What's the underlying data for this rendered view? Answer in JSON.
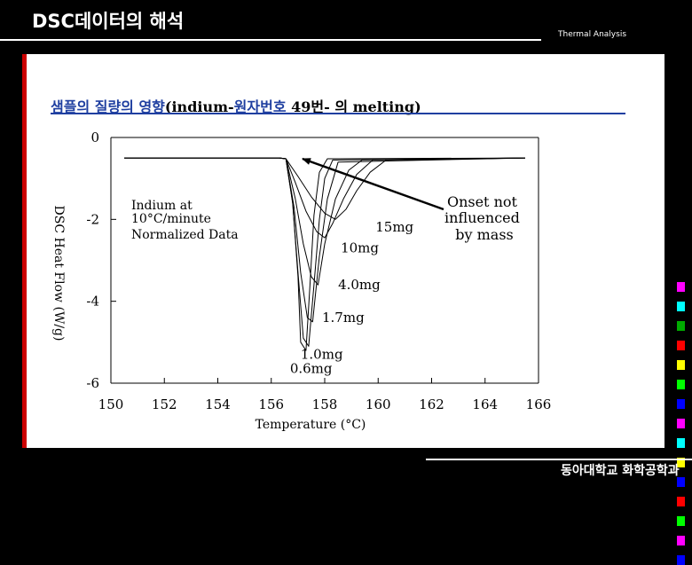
{
  "slide": {
    "title": "DSC데이터의 해석",
    "tag": "Thermal Analysis",
    "footer": "동아대학교 화학공학과"
  },
  "chart_heading": {
    "korean_1": "샘플의 질량의 영향",
    "latin": "(indium-",
    "korean_2": "원자번호",
    "rest": " 49번- 의 melting)"
  },
  "colors": {
    "background": "#000000",
    "panel": "#ffffff",
    "panel_bar": "#cc0000",
    "heading_ko": "#1f3fa0",
    "swatches": [
      "#ff00ff",
      "#00ffff",
      "#00aa00",
      "#ff0000",
      "#ffff00",
      "#00ff00",
      "#0000ff",
      "#ff00ff",
      "#00ffff",
      "#ffff00",
      "#0000ff",
      "#ff0000",
      "#00ff00",
      "#ff00ff",
      "#0000ff"
    ]
  },
  "chart_data": {
    "type": "line",
    "xlabel": "Temperature (°C)",
    "ylabel": "DSC Heat Flow (W/g)",
    "xlim": [
      150,
      166
    ],
    "ylim": [
      -6,
      0
    ],
    "xticks": [
      "150",
      "152",
      "154",
      "156",
      "158",
      "160",
      "162",
      "164",
      "166"
    ],
    "yticks": [
      "0",
      "-2",
      "-4",
      "-6"
    ],
    "annotation_conditions": [
      "Indium at",
      "10°C/minute",
      "Normalized Data"
    ],
    "annotation_onset": [
      "Onset not",
      "influenced",
      "by mass"
    ],
    "series": [
      {
        "name": "0.6mg",
        "x": [
          150.5,
          156.3,
          156.55,
          156.8,
          157.0,
          157.1,
          157.3,
          157.45,
          157.6,
          157.8,
          158.1,
          165.5
        ],
        "y": [
          -0.5,
          -0.5,
          -0.52,
          -1.6,
          -3.4,
          -5.0,
          -5.2,
          -3.6,
          -1.9,
          -0.85,
          -0.52,
          -0.5
        ]
      },
      {
        "name": "1.0mg",
        "x": [
          150.5,
          156.3,
          156.55,
          156.8,
          157.0,
          157.2,
          157.4,
          157.6,
          157.8,
          158.0,
          158.3,
          165.5
        ],
        "y": [
          -0.5,
          -0.5,
          -0.52,
          -1.6,
          -3.3,
          -4.9,
          -5.1,
          -3.6,
          -2.0,
          -1.0,
          -0.55,
          -0.5
        ]
      },
      {
        "name": "1.7mg",
        "x": [
          150.5,
          156.3,
          156.55,
          156.85,
          157.1,
          157.35,
          157.55,
          157.8,
          158.1,
          158.5,
          165.5
        ],
        "y": [
          -0.5,
          -0.5,
          -0.52,
          -1.7,
          -3.3,
          -4.4,
          -4.5,
          -2.9,
          -1.5,
          -0.6,
          -0.5
        ]
      },
      {
        "name": "4.0mg",
        "x": [
          150.5,
          156.3,
          156.55,
          156.9,
          157.2,
          157.5,
          157.75,
          158.0,
          158.4,
          158.9,
          159.4,
          165.5
        ],
        "y": [
          -0.5,
          -0.5,
          -0.52,
          -1.5,
          -2.6,
          -3.4,
          -3.6,
          -2.6,
          -1.5,
          -0.8,
          -0.55,
          -0.5
        ]
      },
      {
        "name": "10mg",
        "x": [
          150.5,
          156.3,
          156.55,
          156.9,
          157.3,
          157.7,
          158.0,
          158.3,
          158.7,
          159.2,
          159.8,
          165.5
        ],
        "y": [
          -0.5,
          -0.5,
          -0.52,
          -1.1,
          -1.8,
          -2.3,
          -2.45,
          -2.1,
          -1.5,
          -0.9,
          -0.55,
          -0.5
        ]
      },
      {
        "name": "15mg",
        "x": [
          150.5,
          156.3,
          156.55,
          157.0,
          157.5,
          158.0,
          158.4,
          158.8,
          159.2,
          159.7,
          160.3,
          165.5
        ],
        "y": [
          -0.5,
          -0.5,
          -0.52,
          -0.95,
          -1.45,
          -1.85,
          -2.0,
          -1.75,
          -1.3,
          -0.85,
          -0.55,
          -0.5
        ]
      }
    ],
    "series_label_positions": [
      [
        156.7,
        -5.75
      ],
      [
        157.1,
        -5.4
      ],
      [
        157.9,
        -4.5
      ],
      [
        158.5,
        -3.7
      ],
      [
        158.6,
        -2.8
      ],
      [
        159.9,
        -2.3
      ]
    ],
    "grid": false,
    "legend": "none"
  }
}
